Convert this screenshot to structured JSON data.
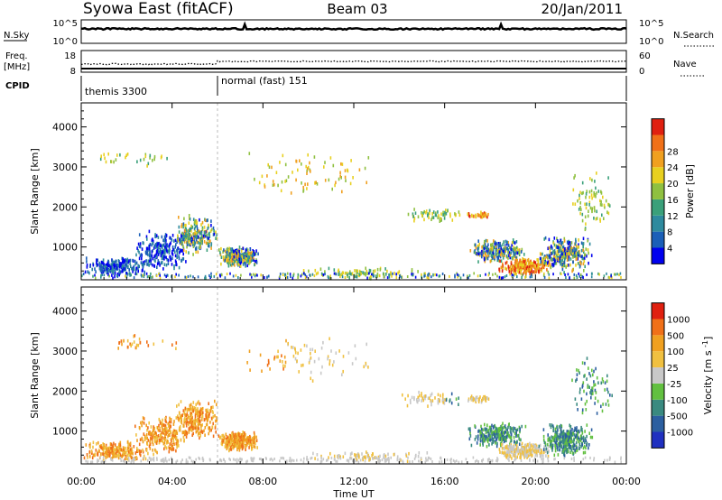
{
  "header": {
    "station": "Syowa East (fitACF)",
    "beam": "Beam 03",
    "date": "20/Jan/2011"
  },
  "noise_panel": {
    "left_label": "N.Sky",
    "left_ticks": [
      "10^5",
      "10^0"
    ],
    "right_label": "N.Search",
    "right_ticks": [
      "10^5",
      "10^0"
    ]
  },
  "freq_panel": {
    "left_label_line1": "Freq.",
    "left_label_line2": "[MHz]",
    "left_ticks": [
      "18",
      "8"
    ],
    "right_label": "Nave",
    "right_ticks": [
      "60",
      "0"
    ]
  },
  "cpid_panel": {
    "label": "CPID",
    "modes": [
      {
        "name": "themis 3300",
        "start_hour": 0
      },
      {
        "name": "normal (fast) 151",
        "start_hour": 6
      }
    ]
  },
  "x_axis": {
    "label": "Time UT",
    "ticks": [
      "00:00",
      "04:00",
      "08:00",
      "12:00",
      "16:00",
      "20:00",
      "00:00"
    ]
  },
  "chart_data": [
    {
      "type": "heatmap",
      "title": "",
      "xlabel": "Time UT",
      "ylabel": "Slant Range [km]",
      "xlim": [
        0,
        24
      ],
      "ylim": [
        180,
        4600
      ],
      "yticks": [
        "1000",
        "2000",
        "3000",
        "4000"
      ],
      "colorbar": {
        "label": "Power [dB]",
        "tick_labels": [
          "4",
          "8",
          "12",
          "16",
          "20",
          "24",
          "28"
        ],
        "colors": [
          "#0000ee",
          "#1b5fb8",
          "#2e8a9e",
          "#3aa07a",
          "#8fc040",
          "#e8d020",
          "#f0a020",
          "#f07018",
          "#e02010"
        ]
      }
    },
    {
      "type": "heatmap",
      "title": "",
      "xlabel": "Time UT",
      "ylabel": "Slant Range [km]",
      "xlim": [
        0,
        24
      ],
      "ylim": [
        180,
        4600
      ],
      "yticks": [
        "1000",
        "2000",
        "3000",
        "4000"
      ],
      "colorbar": {
        "label": "Velocity [m s^-1]",
        "tick_labels": [
          "1000",
          "500",
          "100",
          "25",
          "-25",
          "-100",
          "-500",
          "-1000"
        ],
        "colors": [
          "#2030c0",
          "#2c5fa0",
          "#3a8a80",
          "#62c040",
          "#c8c8c8",
          "#f0c040",
          "#f0a020",
          "#f07018",
          "#e02010"
        ]
      }
    }
  ]
}
